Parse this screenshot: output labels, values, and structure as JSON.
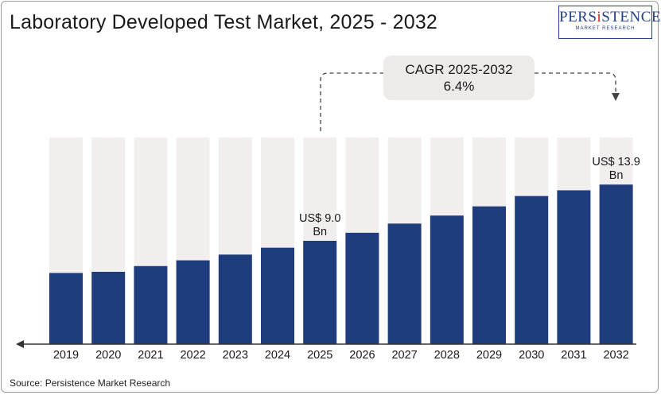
{
  "title": "Laboratory Developed Test Market, 2025 - 2032",
  "logo": {
    "name_start": "PERS",
    "name_accent": "i",
    "name_end": "STENCE",
    "tagline": "MARKET RESEARCH"
  },
  "source": "Source: Persistence Market Research",
  "cagr": {
    "label": "CAGR 2025-2032",
    "value": "6.4%"
  },
  "colors": {
    "bar": "#1f3d7c",
    "track": "#f2eeee",
    "axis": "#333333"
  },
  "chart_data": {
    "type": "bar",
    "categories": [
      "2019",
      "2020",
      "2021",
      "2022",
      "2023",
      "2024",
      "2025",
      "2026",
      "2027",
      "2028",
      "2029",
      "2030",
      "2031",
      "2032"
    ],
    "values": [
      6.2,
      6.3,
      6.8,
      7.3,
      7.8,
      8.4,
      9.0,
      9.7,
      10.5,
      11.2,
      12.0,
      12.9,
      13.4,
      13.9
    ],
    "ylim": [
      0,
      18.0
    ],
    "annotations": [
      {
        "category": "2025",
        "line1": "US$ 9.0",
        "line2": "Bn"
      },
      {
        "category": "2032",
        "line1": "US$ 13.9",
        "line2": "Bn"
      }
    ],
    "title": "Laboratory Developed Test Market, 2025 - 2032",
    "xlabel": "",
    "ylabel": ""
  }
}
